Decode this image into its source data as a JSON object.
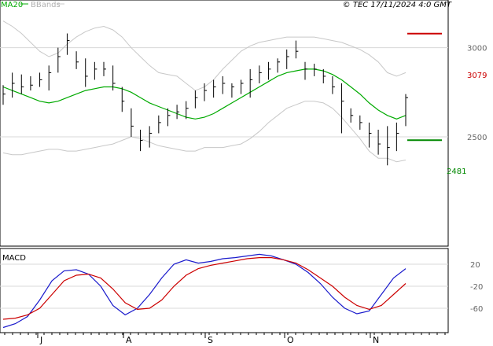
{
  "header": {
    "ma_label": "MA20",
    "bbands_label": "BBands",
    "source_text": "© TEC 17/11/2024 4:0 GMT"
  },
  "levels": {
    "resistance_label": "3079",
    "support_label": "2481"
  },
  "macd_panel": {
    "title": "MACD"
  },
  "colors": {
    "price_bars": "#000000",
    "ma20": "#00aa00",
    "bbands": "#c8c8c8",
    "resistance": "#cc0000",
    "support": "#008800",
    "macd": "#1a1acc",
    "signal": "#cc0000",
    "grid": "#d8d8d8",
    "axis": "#000000"
  },
  "chart_data": [
    {
      "type": "line",
      "title": "",
      "xlabel": "",
      "ylabel": "",
      "ylim": [
        1900,
        3250
      ],
      "x_tick_labels": [
        "J",
        "A",
        "S",
        "O",
        "N"
      ],
      "y_tick_labels": [
        3000,
        2500
      ],
      "grid": true,
      "legend": "top-left",
      "series": [
        {
          "name": "MA20",
          "values": [
            2780,
            2760,
            2740,
            2720,
            2700,
            2690,
            2700,
            2720,
            2740,
            2760,
            2770,
            2780,
            2780,
            2770,
            2750,
            2720,
            2690,
            2670,
            2650,
            2630,
            2610,
            2600,
            2610,
            2630,
            2660,
            2690,
            2720,
            2750,
            2780,
            2810,
            2840,
            2860,
            2870,
            2880,
            2880,
            2870,
            2850,
            2820,
            2780,
            2740,
            2690,
            2650,
            2620,
            2600,
            2620
          ]
        },
        {
          "name": "BBands",
          "values": [
            3150,
            3120,
            3080,
            3030,
            2980,
            2950,
            2970,
            3020,
            3060,
            3090,
            3110,
            3120,
            3100,
            3060,
            3000,
            2950,
            2900,
            2860,
            2850,
            2840,
            2800,
            2760,
            2780,
            2820,
            2880,
            2930,
            2980,
            3010,
            3030,
            3040,
            3050,
            3060,
            3060,
            3060,
            3060,
            3050,
            3040,
            3030,
            3010,
            2990,
            2960,
            2920,
            2860,
            2840,
            2860
          ]
        },
        {
          "name": "",
          "values": [
            2410,
            2400,
            2400,
            2410,
            2420,
            2430,
            2430,
            2420,
            2420,
            2430,
            2440,
            2450,
            2460,
            2480,
            2500,
            2490,
            2470,
            2450,
            2440,
            2430,
            2420,
            2420,
            2440,
            2440,
            2440,
            2450,
            2460,
            2490,
            2530,
            2580,
            2620,
            2660,
            2680,
            2700,
            2700,
            2690,
            2660,
            2610,
            2550,
            2490,
            2420,
            2380,
            2380,
            2360,
            2370
          ]
        }
      ],
      "price_bars": [
        {
          "h": 2790,
          "l": 2680,
          "c": 2740
        },
        {
          "h": 2860,
          "l": 2720,
          "c": 2800
        },
        {
          "h": 2850,
          "l": 2740,
          "c": 2780
        },
        {
          "h": 2840,
          "l": 2760,
          "c": 2790
        },
        {
          "h": 2860,
          "l": 2780,
          "c": 2820
        },
        {
          "h": 2900,
          "l": 2760,
          "c": 2860
        },
        {
          "h": 3000,
          "l": 2860,
          "c": 2950
        },
        {
          "h": 3080,
          "l": 2960,
          "c": 3040
        },
        {
          "h": 2980,
          "l": 2880,
          "c": 2920
        },
        {
          "h": 2940,
          "l": 2780,
          "c": 2840
        },
        {
          "h": 2920,
          "l": 2820,
          "c": 2880
        },
        {
          "h": 2920,
          "l": 2840,
          "c": 2880
        },
        {
          "h": 2900,
          "l": 2760,
          "c": 2800
        },
        {
          "h": 2780,
          "l": 2640,
          "c": 2700
        },
        {
          "h": 2660,
          "l": 2500,
          "c": 2560
        },
        {
          "h": 2540,
          "l": 2420,
          "c": 2480
        },
        {
          "h": 2560,
          "l": 2440,
          "c": 2520
        },
        {
          "h": 2620,
          "l": 2520,
          "c": 2580
        },
        {
          "h": 2660,
          "l": 2560,
          "c": 2620
        },
        {
          "h": 2680,
          "l": 2600,
          "c": 2640
        },
        {
          "h": 2700,
          "l": 2600,
          "c": 2660
        },
        {
          "h": 2760,
          "l": 2660,
          "c": 2720
        },
        {
          "h": 2800,
          "l": 2700,
          "c": 2760
        },
        {
          "h": 2820,
          "l": 2720,
          "c": 2780
        },
        {
          "h": 2840,
          "l": 2740,
          "c": 2800
        },
        {
          "h": 2800,
          "l": 2720,
          "c": 2780
        },
        {
          "h": 2820,
          "l": 2740,
          "c": 2800
        },
        {
          "h": 2880,
          "l": 2720,
          "c": 2820
        },
        {
          "h": 2900,
          "l": 2800,
          "c": 2860
        },
        {
          "h": 2920,
          "l": 2820,
          "c": 2880
        },
        {
          "h": 2940,
          "l": 2860,
          "c": 2920
        },
        {
          "h": 2990,
          "l": 2880,
          "c": 2950
        },
        {
          "h": 3040,
          "l": 2940,
          "c": 2980
        },
        {
          "h": 2920,
          "l": 2820,
          "c": 2880
        },
        {
          "h": 2910,
          "l": 2840,
          "c": 2880
        },
        {
          "h": 2880,
          "l": 2800,
          "c": 2840
        },
        {
          "h": 2840,
          "l": 2740,
          "c": 2780
        },
        {
          "h": 2800,
          "l": 2520,
          "c": 2700
        },
        {
          "h": 2660,
          "l": 2580,
          "c": 2620
        },
        {
          "h": 2620,
          "l": 2540,
          "c": 2580
        },
        {
          "h": 2580,
          "l": 2440,
          "c": 2520
        },
        {
          "h": 2540,
          "l": 2400,
          "c": 2460
        },
        {
          "h": 2560,
          "l": 2340,
          "c": 2440
        },
        {
          "h": 2580,
          "l": 2420,
          "c": 2520
        },
        {
          "h": 2740,
          "l": 2560,
          "c": 2720
        }
      ],
      "levels": {
        "resistance": 3079,
        "support": 2481
      }
    },
    {
      "type": "line",
      "title": "MACD",
      "xlabel": "",
      "ylabel": "",
      "ylim": [
        -100,
        40
      ],
      "y_tick_labels": [
        20,
        -20,
        -60
      ],
      "x_tick_labels": [
        "J",
        "A",
        "S",
        "O",
        "N"
      ],
      "grid": true,
      "series": [
        {
          "name": "",
          "values": [
            -95,
            -88,
            -75,
            -45,
            -10,
            8,
            10,
            2,
            -20,
            -55,
            -72,
            -60,
            -35,
            -5,
            20,
            28,
            22,
            25,
            30,
            32,
            35,
            38,
            35,
            28,
            20,
            5,
            -15,
            -40,
            -60,
            -70,
            -65,
            -35,
            -5,
            12
          ]
        },
        {
          "name": "",
          "values": [
            -80,
            -78,
            -72,
            -60,
            -35,
            -10,
            0,
            2,
            -5,
            -25,
            -50,
            -62,
            -60,
            -45,
            -20,
            0,
            12,
            18,
            22,
            26,
            30,
            32,
            32,
            28,
            22,
            10,
            -5,
            -20,
            -40,
            -55,
            -62,
            -55,
            -35,
            -15
          ]
        }
      ]
    }
  ]
}
